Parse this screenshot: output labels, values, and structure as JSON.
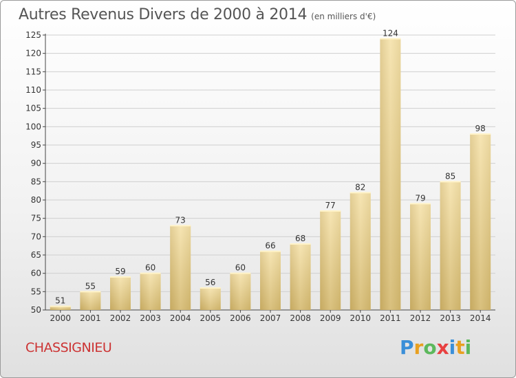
{
  "header": {
    "title": "Autres Revenus Divers de 2000 à 2014",
    "subtitle": "(en milliers d'€)"
  },
  "footer": {
    "commune": "CHASSIGNIEU",
    "logo_text": "Proxiti",
    "logo_colors": [
      "#3a8fd8",
      "#e8a020",
      "#5cb85c",
      "#e84040",
      "#3a8fd8",
      "#e8a020",
      "#5cb85c"
    ]
  },
  "chart_data": {
    "type": "bar",
    "categories": [
      "2000",
      "2001",
      "2002",
      "2003",
      "2004",
      "2005",
      "2006",
      "2007",
      "2008",
      "2009",
      "2010",
      "2011",
      "2012",
      "2013",
      "2014"
    ],
    "values": [
      51,
      55,
      59,
      60,
      73,
      56,
      60,
      66,
      68,
      77,
      82,
      124,
      79,
      85,
      98
    ],
    "ylim": [
      50,
      125
    ],
    "yticks": [
      50,
      55,
      60,
      65,
      70,
      75,
      80,
      85,
      90,
      95,
      100,
      105,
      110,
      115,
      120,
      125
    ],
    "grid": true,
    "data_labels": true,
    "bar_color": "#e9cf8a"
  }
}
